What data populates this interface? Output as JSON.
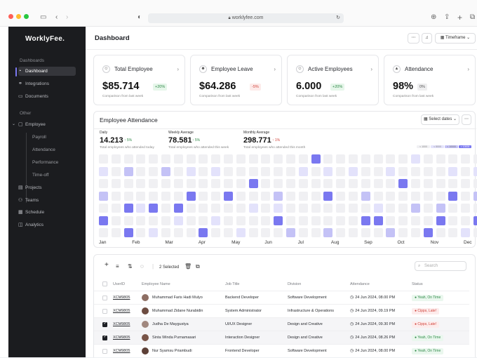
{
  "browser": {
    "url": "worklyfee.com"
  },
  "sidebar": {
    "logo": "WorklyFee.",
    "section_main": "Dashboards",
    "items": [
      {
        "label": "Dashboard",
        "icon": "dashboard-icon"
      },
      {
        "label": "Integrations",
        "icon": "link-icon"
      },
      {
        "label": "Documents",
        "icon": "folder-icon"
      }
    ],
    "section_other": "Other",
    "employee_label": "Employee",
    "employee_sub": [
      "Payroll",
      "Attendance",
      "Performance",
      "Time-off"
    ],
    "other_items": [
      {
        "label": "Projects",
        "icon": "projects-icon"
      },
      {
        "label": "Teams",
        "icon": "teams-icon"
      },
      {
        "label": "Schedule",
        "icon": "calendar-icon"
      },
      {
        "label": "Analytics",
        "icon": "analytics-icon"
      }
    ]
  },
  "header": {
    "title": "Dashboard",
    "timeframe_label": "Timeframe"
  },
  "cards": [
    {
      "title": "Total Employee",
      "value": "$85.714",
      "badge": "+20%",
      "note": "Comparison from last week"
    },
    {
      "title": "Employee Leave",
      "value": "$64.286",
      "badge": "-5%",
      "note": "Comparison from last week"
    },
    {
      "title": "Active Employees",
      "value": "6.000",
      "badge": "+20%",
      "note": "Comparison from last week"
    },
    {
      "title": "Attendance",
      "value": "98%",
      "badge": "0%",
      "note": "Comparison from last week"
    }
  ],
  "attendance": {
    "title": "Employee Attendance",
    "select_dates": "Select dates",
    "stats": [
      {
        "label": "Daily",
        "value": "14.213",
        "change": "↑ 5%",
        "note": "Total employees who attended today"
      },
      {
        "label": "Weekly Average",
        "value": "78.581",
        "change": "↑ 5%",
        "note": "Total employees who attended this week"
      },
      {
        "label": "Monthly Average",
        "value": "298.771",
        "change": "↑ 1%",
        "note": "Total employees who attended this month"
      }
    ],
    "legend": [
      "< 1000",
      "< 5000",
      "< 10000",
      "> 10000"
    ],
    "months": [
      "Jan",
      "Feb",
      "Mar",
      "Apr",
      "May",
      "Jun",
      "Jul",
      "Aug",
      "Sep",
      "Oct",
      "Nov",
      "Dec"
    ],
    "heatmap": [
      [
        0,
        0,
        0,
        0,
        0,
        0,
        0,
        0,
        0,
        0,
        0,
        0,
        0,
        0,
        0,
        0,
        0,
        3,
        0,
        0,
        0,
        0,
        0,
        0,
        0,
        1,
        0,
        0,
        0,
        0,
        0
      ],
      [
        1,
        0,
        2,
        0,
        0,
        2,
        0,
        1,
        0,
        1,
        0,
        0,
        0,
        0,
        0,
        0,
        1,
        0,
        1,
        0,
        1,
        0,
        0,
        1,
        0,
        0,
        0,
        0,
        1,
        0,
        1
      ],
      [
        0,
        0,
        0,
        0,
        0,
        0,
        0,
        0,
        0,
        0,
        0,
        0,
        3,
        0,
        0,
        0,
        0,
        0,
        0,
        0,
        0,
        0,
        0,
        0,
        3,
        0,
        0,
        0,
        0,
        0,
        0
      ],
      [
        2,
        0,
        0,
        0,
        0,
        0,
        0,
        3,
        0,
        0,
        3,
        0,
        0,
        0,
        2,
        0,
        0,
        0,
        3,
        0,
        0,
        2,
        0,
        0,
        0,
        0,
        0,
        0,
        3,
        0,
        2
      ],
      [
        0,
        0,
        3,
        1,
        3,
        0,
        3,
        0,
        0,
        0,
        0,
        0,
        1,
        0,
        1,
        0,
        0,
        0,
        0,
        0,
        0,
        0,
        1,
        0,
        0,
        2,
        0,
        2,
        0,
        0,
        0
      ],
      [
        3,
        0,
        0,
        0,
        0,
        0,
        1,
        0,
        0,
        1,
        0,
        0,
        0,
        0,
        3,
        0,
        0,
        0,
        0,
        0,
        0,
        3,
        3,
        0,
        0,
        0,
        0,
        3,
        0,
        0,
        3
      ],
      [
        0,
        0,
        3,
        0,
        1,
        0,
        0,
        0,
        3,
        0,
        0,
        1,
        0,
        0,
        0,
        2,
        0,
        0,
        2,
        0,
        0,
        0,
        0,
        2,
        0,
        0,
        3,
        0,
        0,
        1,
        0
      ]
    ]
  },
  "table": {
    "selected_label": "2 Selected",
    "search_placeholder": "Search",
    "headers": [
      "UserID",
      "Employee Name",
      "Job Title",
      "Division",
      "Attendance",
      "Status"
    ],
    "rows": [
      {
        "id": "XCM9805",
        "name": "Muhammad Faris Hadi Mulyo",
        "job": "Backend Developer",
        "division": "Software Development",
        "date": "24 Jun 2024, 08.00 PM",
        "status": "Yeah, On Time",
        "ok": true,
        "checked": false
      },
      {
        "id": "XCM9805",
        "name": "Muhammad Zidane Nurabidin",
        "job": "System Administrator",
        "division": "Infrastructure & Operations",
        "date": "24 Jun 2024, 09.19 PM",
        "status": "Cipps, Late!",
        "ok": false,
        "checked": false
      },
      {
        "id": "XCM9805",
        "name": "Judha De Maygustya",
        "job": "UI/UX Designer",
        "division": "Design and Creative",
        "date": "24 Jun 2024, 09.30 PM",
        "status": "Cipps, Late!",
        "ok": false,
        "checked": true
      },
      {
        "id": "XCM9805",
        "name": "Sinta Winda Purnamasari",
        "job": "Interaction Designer",
        "division": "Design and Creative",
        "date": "24 Jun 2024, 08.26 PM",
        "status": "Yeah, On Time",
        "ok": true,
        "checked": true
      },
      {
        "id": "XCM9805",
        "name": "Nur Syamsu Priambudi",
        "job": "Frontend Developer",
        "division": "Software Development",
        "date": "24 Jun 2024, 08.00 PM",
        "status": "Yeah, On Time",
        "ok": true,
        "checked": false
      }
    ]
  },
  "colors": {
    "accent": "#7a78f0",
    "level0": "#f0f0f3",
    "level1": "#e3e2fb",
    "level2": "#c4c2f6",
    "level3": "#7a78f0"
  }
}
